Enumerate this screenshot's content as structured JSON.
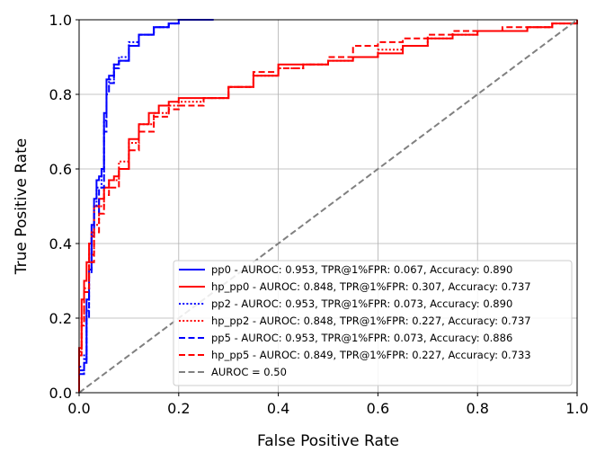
{
  "chart_data": {
    "type": "line",
    "title": "",
    "xlabel": "False Positive Rate",
    "ylabel": "True Positive Rate",
    "xlim": [
      0.0,
      1.0
    ],
    "ylim": [
      0.0,
      1.0
    ],
    "x_ticks": [
      "0.0",
      "0.2",
      "0.4",
      "0.6",
      "0.8",
      "1.0"
    ],
    "y_ticks": [
      "0.0",
      "0.2",
      "0.4",
      "0.6",
      "0.8",
      "1.0"
    ],
    "grid": true,
    "legend_position": "lower-right",
    "series": [
      {
        "name": "pp0 - AUROC: 0.953, TPR@1%FPR: 0.067, Accuracy: 0.890",
        "color": "#0000ff",
        "style": "solid",
        "x": [
          0.0,
          0.0,
          0.01,
          0.015,
          0.02,
          0.025,
          0.03,
          0.035,
          0.04,
          0.045,
          0.05,
          0.055,
          0.06,
          0.07,
          0.08,
          0.1,
          0.12,
          0.15,
          0.18,
          0.2,
          0.27
        ],
        "y": [
          0.0,
          0.06,
          0.08,
          0.25,
          0.33,
          0.45,
          0.52,
          0.57,
          0.58,
          0.6,
          0.75,
          0.84,
          0.85,
          0.88,
          0.89,
          0.93,
          0.96,
          0.98,
          0.99,
          1.0,
          1.0
        ]
      },
      {
        "name": "hp_pp0 - AUROC: 0.848, TPR@1%FPR: 0.307, Accuracy: 0.737",
        "color": "#ff0000",
        "style": "solid",
        "x": [
          0.0,
          0.0,
          0.005,
          0.01,
          0.015,
          0.02,
          0.025,
          0.03,
          0.04,
          0.05,
          0.06,
          0.07,
          0.08,
          0.1,
          0.12,
          0.14,
          0.16,
          0.18,
          0.2,
          0.25,
          0.3,
          0.35,
          0.4,
          0.45,
          0.5,
          0.55,
          0.6,
          0.65,
          0.7,
          0.75,
          0.8,
          0.85,
          0.9,
          0.95,
          1.0
        ],
        "y": [
          0.0,
          0.12,
          0.25,
          0.3,
          0.35,
          0.4,
          0.43,
          0.5,
          0.52,
          0.55,
          0.57,
          0.58,
          0.6,
          0.68,
          0.72,
          0.75,
          0.77,
          0.78,
          0.79,
          0.79,
          0.82,
          0.85,
          0.88,
          0.88,
          0.89,
          0.9,
          0.91,
          0.93,
          0.95,
          0.96,
          0.97,
          0.97,
          0.98,
          0.99,
          1.0
        ]
      },
      {
        "name": "pp2 - AUROC: 0.953, TPR@1%FPR: 0.073, Accuracy: 0.890",
        "color": "#0000ff",
        "style": "dotted",
        "x": [
          0.0,
          0.0,
          0.01,
          0.015,
          0.02,
          0.025,
          0.03,
          0.035,
          0.045,
          0.05,
          0.055,
          0.06,
          0.07,
          0.08,
          0.1,
          0.12,
          0.15,
          0.18,
          0.2,
          0.27
        ],
        "y": [
          0.0,
          0.07,
          0.1,
          0.22,
          0.35,
          0.43,
          0.5,
          0.55,
          0.58,
          0.73,
          0.82,
          0.84,
          0.88,
          0.9,
          0.94,
          0.96,
          0.98,
          0.99,
          1.0,
          1.0
        ]
      },
      {
        "name": "hp_pp2 - AUROC: 0.848, TPR@1%FPR: 0.227, Accuracy: 0.737",
        "color": "#ff0000",
        "style": "dotted",
        "x": [
          0.0,
          0.0,
          0.005,
          0.01,
          0.02,
          0.03,
          0.04,
          0.05,
          0.06,
          0.08,
          0.1,
          0.12,
          0.15,
          0.18,
          0.2,
          0.25,
          0.3,
          0.35,
          0.4,
          0.45,
          0.5,
          0.55,
          0.6,
          0.65,
          0.7,
          0.75,
          0.8,
          0.85,
          0.9,
          0.95,
          1.0
        ],
        "y": [
          0.0,
          0.11,
          0.2,
          0.28,
          0.37,
          0.45,
          0.5,
          0.55,
          0.57,
          0.62,
          0.67,
          0.72,
          0.75,
          0.77,
          0.78,
          0.79,
          0.82,
          0.85,
          0.87,
          0.88,
          0.89,
          0.9,
          0.92,
          0.93,
          0.95,
          0.96,
          0.97,
          0.97,
          0.98,
          0.99,
          1.0
        ]
      },
      {
        "name": "pp5 - AUROC: 0.953, TPR@1%FPR: 0.073, Accuracy: 0.886",
        "color": "#0000ff",
        "style": "dashed",
        "x": [
          0.0,
          0.0,
          0.01,
          0.015,
          0.02,
          0.025,
          0.03,
          0.04,
          0.05,
          0.055,
          0.06,
          0.07,
          0.08,
          0.1,
          0.12,
          0.15,
          0.18,
          0.2,
          0.27
        ],
        "y": [
          0.0,
          0.05,
          0.09,
          0.2,
          0.32,
          0.42,
          0.48,
          0.55,
          0.7,
          0.8,
          0.83,
          0.87,
          0.89,
          0.93,
          0.96,
          0.98,
          0.99,
          1.0,
          1.0
        ]
      },
      {
        "name": "hp_pp5 - AUROC: 0.849, TPR@1%FPR: 0.227, Accuracy: 0.733",
        "color": "#ff0000",
        "style": "dashed",
        "x": [
          0.0,
          0.0,
          0.005,
          0.01,
          0.02,
          0.03,
          0.04,
          0.05,
          0.06,
          0.08,
          0.1,
          0.12,
          0.15,
          0.18,
          0.2,
          0.25,
          0.3,
          0.35,
          0.4,
          0.45,
          0.5,
          0.55,
          0.6,
          0.65,
          0.7,
          0.75,
          0.8,
          0.85,
          0.9,
          0.95,
          1.0
        ],
        "y": [
          0.0,
          0.1,
          0.18,
          0.27,
          0.35,
          0.43,
          0.48,
          0.53,
          0.55,
          0.6,
          0.65,
          0.7,
          0.74,
          0.76,
          0.77,
          0.79,
          0.82,
          0.86,
          0.87,
          0.88,
          0.9,
          0.93,
          0.94,
          0.95,
          0.96,
          0.97,
          0.97,
          0.98,
          0.98,
          0.99,
          1.0
        ]
      },
      {
        "name": "AUROC = 0.50",
        "color": "#808080",
        "style": "dashed",
        "x": [
          0.0,
          1.0
        ],
        "y": [
          0.0,
          1.0
        ]
      }
    ]
  }
}
